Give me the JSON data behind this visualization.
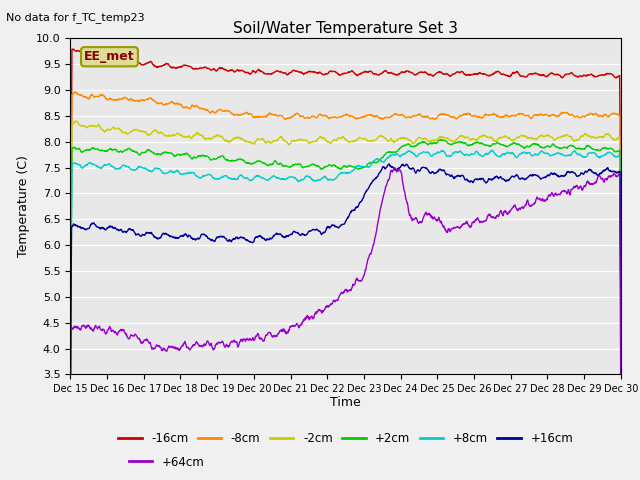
{
  "title": "Soil/Water Temperature Set 3",
  "subtitle": "No data for f_TC_temp23",
  "xlabel": "Time",
  "ylabel": "Temperature (C)",
  "ylim": [
    3.5,
    10.0
  ],
  "xlim": [
    0,
    15
  ],
  "xtick_labels": [
    "Dec 15",
    "Dec 16",
    "Dec 17",
    "Dec 18",
    "Dec 19",
    "Dec 20",
    "Dec 21",
    "Dec 22",
    "Dec 23",
    "Dec 24",
    "Dec 25",
    "Dec 26",
    "Dec 27",
    "Dec 28",
    "Dec 29",
    "Dec 30"
  ],
  "series_labels": [
    "-16cm",
    "-8cm",
    "-2cm",
    "+2cm",
    "+8cm",
    "+16cm",
    "+64cm"
  ],
  "series_colors": [
    "#cc0000",
    "#ff8800",
    "#cccc00",
    "#00cc00",
    "#00cccc",
    "#000099",
    "#9900cc"
  ],
  "bg_color": "#e8e8e8",
  "legend_text": "EE_met",
  "n_points": 1440
}
